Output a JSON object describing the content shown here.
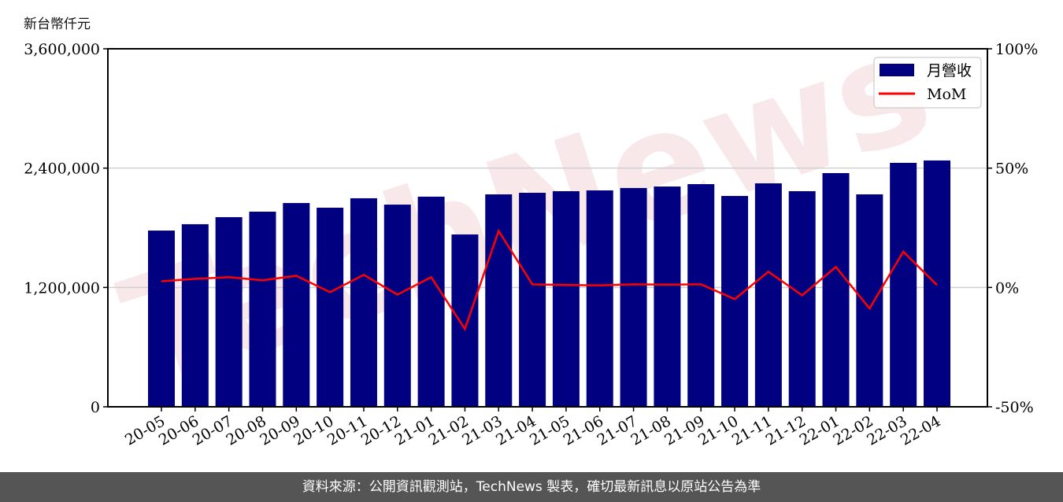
{
  "chart_data": {
    "type": "bar+line",
    "yunit_label": "新台幣仟元",
    "categories": [
      "20-05",
      "20-06",
      "20-07",
      "20-08",
      "20-09",
      "20-10",
      "20-11",
      "20-12",
      "21-01",
      "21-02",
      "21-03",
      "21-04",
      "21-05",
      "21-06",
      "21-07",
      "21-08",
      "21-09",
      "21-10",
      "21-11",
      "21-12",
      "22-01",
      "22-02",
      "22-03",
      "22-04"
    ],
    "series": [
      {
        "name": "月營收",
        "type": "bar",
        "axis": "left",
        "color": "#000080",
        "values": [
          1772000,
          1836000,
          1907000,
          1962000,
          2049000,
          2002000,
          2097000,
          2033000,
          2113000,
          1733000,
          2136000,
          2152000,
          2168000,
          2176000,
          2200000,
          2215000,
          2239000,
          2120000,
          2247000,
          2168000,
          2350000,
          2136000,
          2453000,
          2477000
        ]
      },
      {
        "name": "MoM",
        "type": "line",
        "axis": "right",
        "color": "#ff0000",
        "unit": "%",
        "values": [
          2.6,
          3.6,
          4.3,
          3.0,
          4.9,
          -2.0,
          5.3,
          -3.0,
          4.3,
          -17.4,
          23.7,
          1.3,
          1.0,
          0.9,
          1.3,
          1.2,
          1.3,
          -4.9,
          6.6,
          -3.3,
          8.6,
          -8.8,
          15.0,
          1.0
        ]
      }
    ],
    "left_axis": {
      "ylim": [
        0,
        3600000
      ],
      "ticks": [
        0,
        1200000,
        2400000,
        3600000
      ],
      "tick_labels": [
        "0",
        "1,200,000",
        "2,400,000",
        "3,600,000"
      ]
    },
    "right_axis": {
      "ylim": [
        -50,
        100
      ],
      "ticks": [
        -50,
        0,
        50,
        100
      ],
      "tick_labels": [
        "-50%",
        "0%",
        "50%",
        "100%"
      ]
    },
    "grid": "horizontal",
    "legend_placement": "top-right",
    "watermark": "TechNews"
  },
  "footer": {
    "source": "資料來源：公開資訊觀測站，TechNews 製表，確切最新訊息以原站公告為準"
  }
}
